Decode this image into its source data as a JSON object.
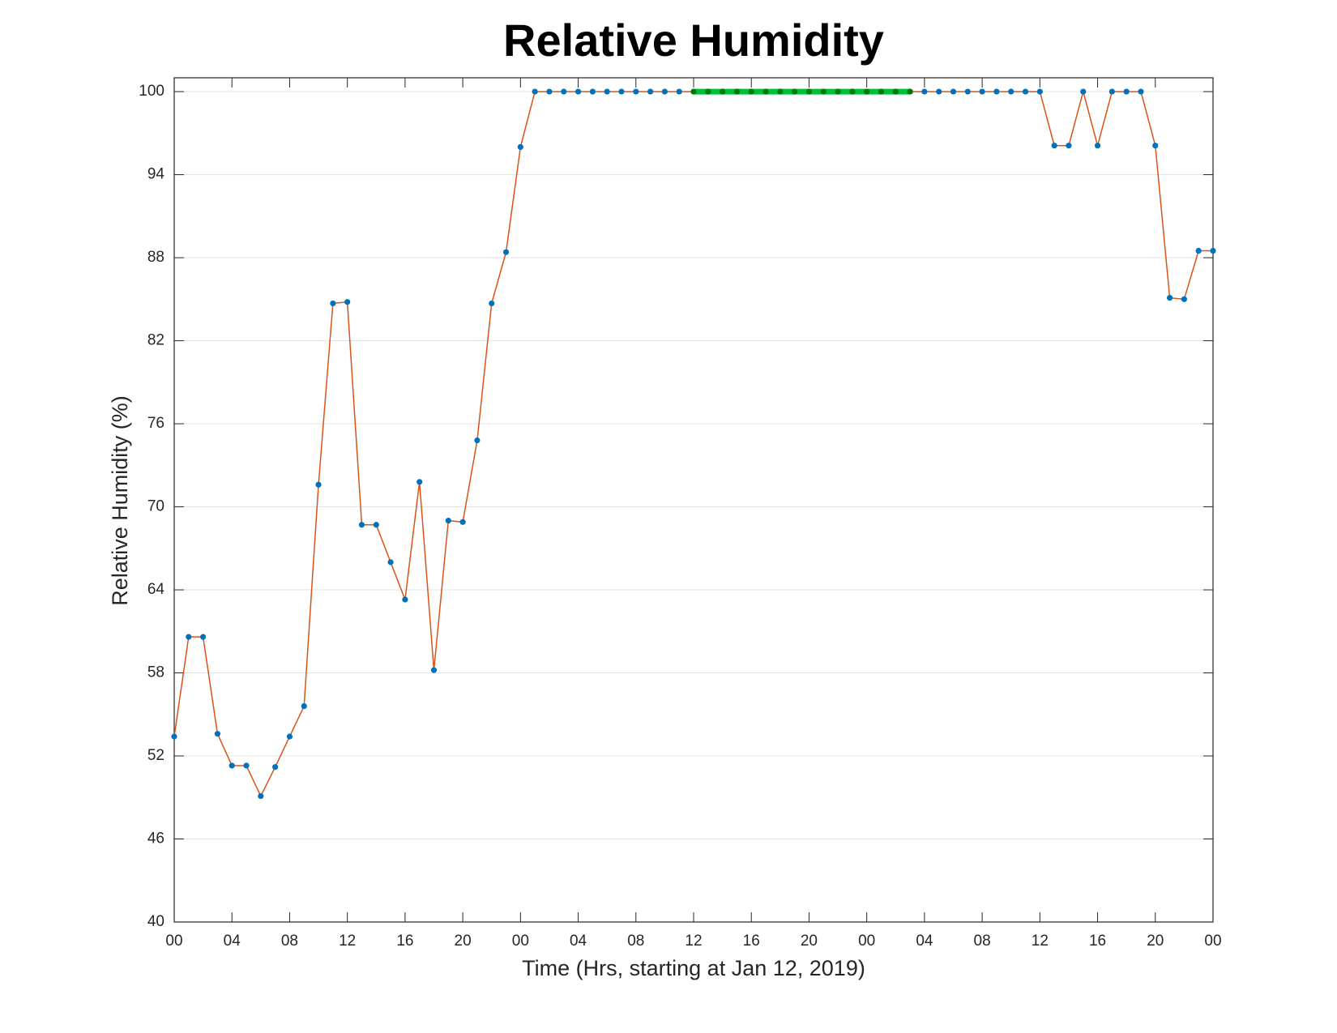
{
  "chart_data": {
    "type": "line",
    "title": "Relative Humidity",
    "xlabel": "Time (Hrs, starting at Jan 12, 2019)",
    "ylabel": "Relative Humidity (%)",
    "x": [
      0,
      1,
      2,
      3,
      4,
      5,
      6,
      7,
      8,
      9,
      10,
      11,
      12,
      13,
      14,
      15,
      16,
      17,
      18,
      19,
      20,
      21,
      22,
      23,
      24,
      25,
      26,
      27,
      28,
      29,
      30,
      31,
      32,
      33,
      34,
      35,
      36,
      37,
      38,
      39,
      40,
      41,
      42,
      43,
      44,
      45,
      46,
      47,
      48,
      49,
      50,
      51,
      52,
      53,
      54,
      55,
      56,
      57,
      58,
      59,
      60,
      61,
      62,
      63,
      64,
      65,
      66,
      67,
      68,
      69,
      70,
      71,
      72
    ],
    "series": [
      {
        "color": "#d95319",
        "marker_color": "#0072bd",
        "values": [
          53.4,
          60.6,
          60.6,
          53.6,
          51.3,
          51.3,
          49.1,
          51.2,
          53.4,
          55.6,
          71.6,
          84.7,
          84.8,
          68.7,
          68.7,
          66.0,
          63.3,
          71.8,
          58.2,
          69.0,
          68.9,
          74.8,
          84.7,
          88.4,
          96.0,
          100,
          100,
          100,
          100,
          100,
          100,
          100,
          100,
          100,
          100,
          100,
          100,
          100,
          100,
          100,
          100,
          100,
          100,
          100,
          100,
          100,
          100,
          100,
          100,
          100,
          100,
          100,
          100,
          100,
          100,
          100,
          100,
          100,
          100,
          100,
          100,
          96.1,
          96.1,
          100,
          96.1,
          100,
          100,
          100,
          96.1,
          85.1,
          85.0,
          88.5,
          88.5
        ]
      },
      {
        "color": "#00c03a",
        "marker_color": "#007a00",
        "values": [
          null,
          null,
          null,
          null,
          null,
          null,
          null,
          null,
          null,
          null,
          null,
          null,
          null,
          null,
          null,
          null,
          null,
          null,
          null,
          null,
          null,
          null,
          null,
          null,
          null,
          null,
          null,
          null,
          null,
          null,
          null,
          null,
          null,
          null,
          null,
          null,
          100,
          100,
          100,
          100,
          100,
          100,
          100,
          100,
          100,
          100,
          100,
          100,
          100,
          100,
          100,
          100,
          null,
          null,
          null,
          null,
          null,
          null,
          null,
          null,
          null,
          null,
          null,
          null,
          null,
          null,
          null,
          null,
          null,
          null,
          null,
          null,
          null
        ]
      }
    ],
    "xlim": [
      0,
      72
    ],
    "xticks": [
      {
        "value": 0,
        "label": "00"
      },
      {
        "value": 4,
        "label": "04"
      },
      {
        "value": 8,
        "label": "08"
      },
      {
        "value": 12,
        "label": "12"
      },
      {
        "value": 16,
        "label": "16"
      },
      {
        "value": 20,
        "label": "20"
      },
      {
        "value": 24,
        "label": "00"
      },
      {
        "value": 28,
        "label": "04"
      },
      {
        "value": 32,
        "label": "08"
      },
      {
        "value": 36,
        "label": "12"
      },
      {
        "value": 40,
        "label": "16"
      },
      {
        "value": 44,
        "label": "20"
      },
      {
        "value": 48,
        "label": "00"
      },
      {
        "value": 52,
        "label": "04"
      },
      {
        "value": 56,
        "label": "08"
      },
      {
        "value": 60,
        "label": "12"
      },
      {
        "value": 64,
        "label": "16"
      },
      {
        "value": 68,
        "label": "20"
      },
      {
        "value": 72,
        "label": "00"
      }
    ],
    "ylim": [
      40,
      101
    ],
    "yticks": [
      40,
      46,
      52,
      58,
      64,
      70,
      76,
      82,
      88,
      94,
      100
    ],
    "grid": true
  }
}
